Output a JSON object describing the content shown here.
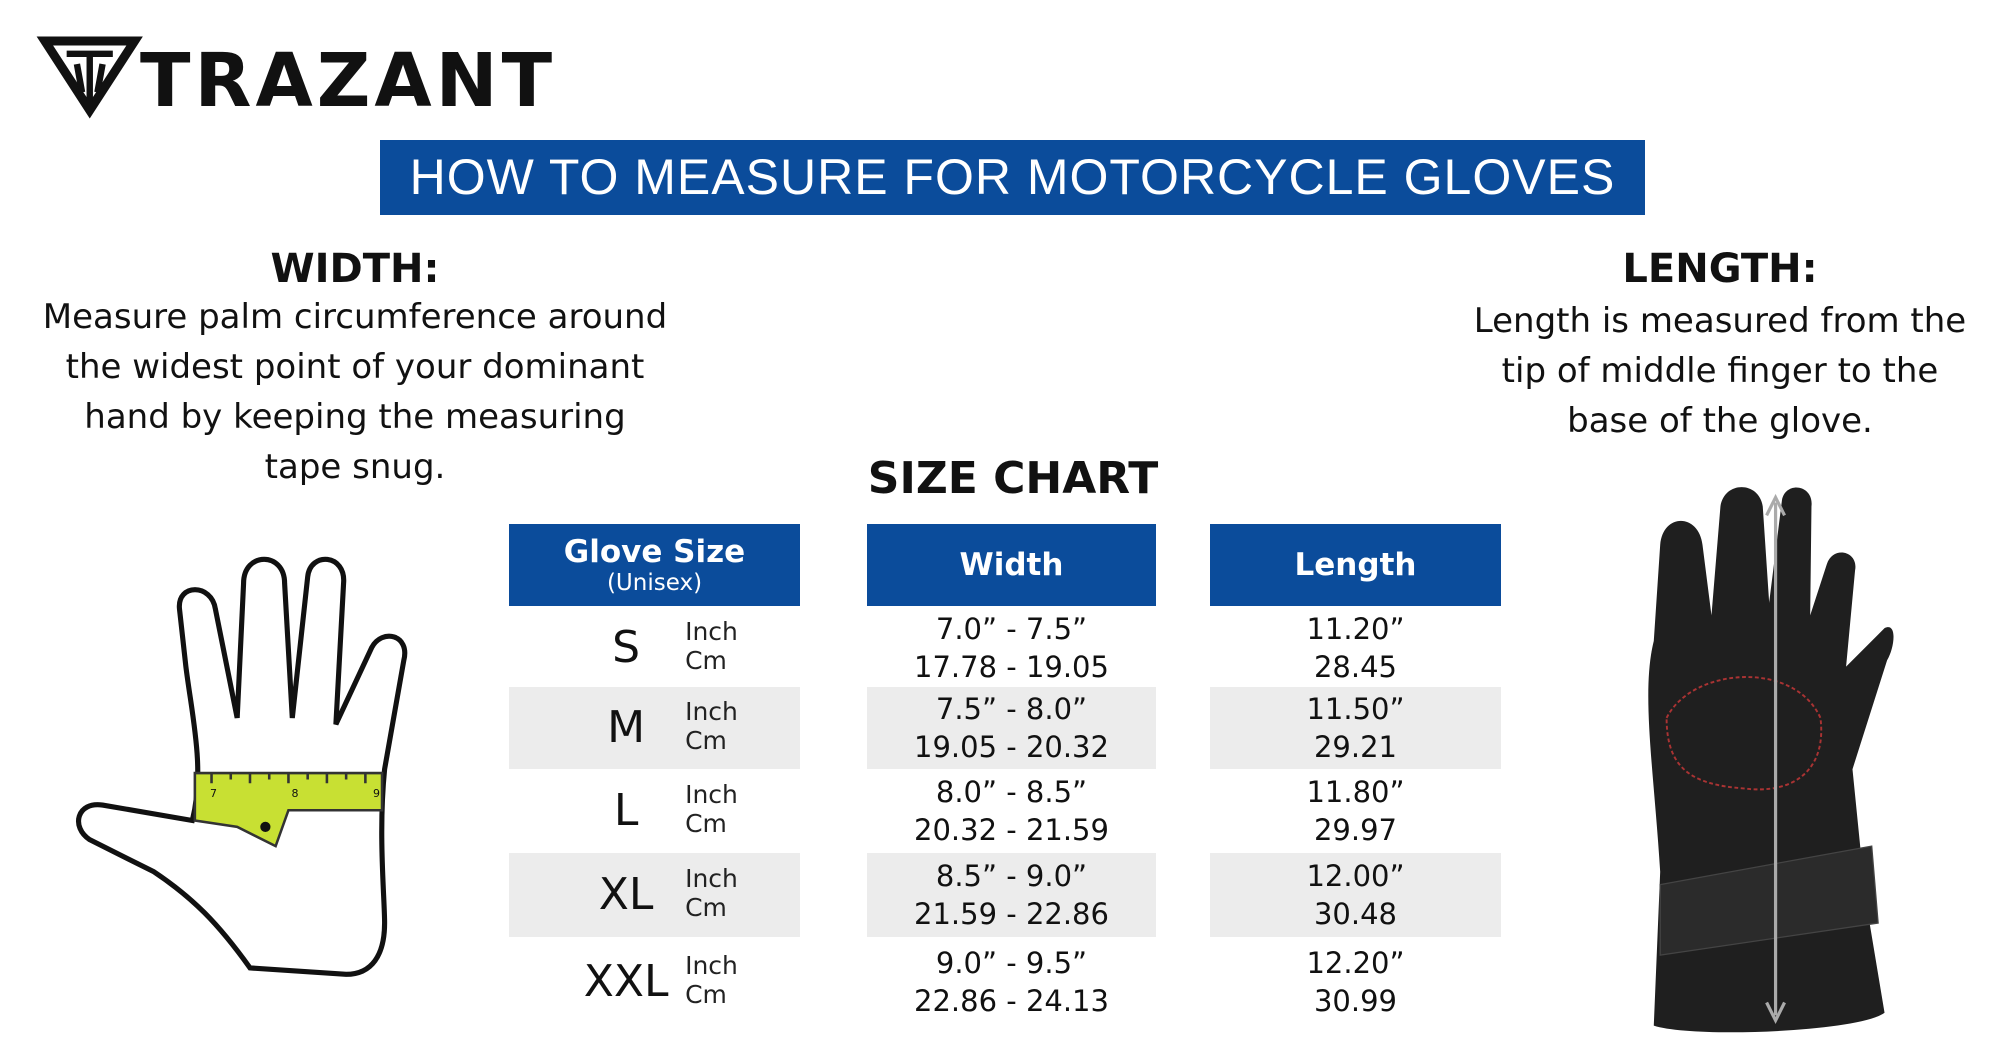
{
  "brand": "TRAZANT",
  "banner": "HOW TO MEASURE FOR MOTORCYCLE GLOVES",
  "width_section": {
    "heading": "WIDTH:",
    "lines": [
      "Measure palm circumference around",
      "the widest point of your dominant",
      "hand by keeping the measuring",
      "tape snug."
    ]
  },
  "length_section": {
    "heading": "LENGTH:",
    "lines": [
      "Length is measured from the",
      "tip of middle finger to the",
      "base of the glove."
    ]
  },
  "tape_marks": [
    "7",
    "8",
    "9"
  ],
  "size_chart": {
    "title": "SIZE CHART",
    "headers": {
      "size": "Glove Size",
      "size_note": "(Unisex)",
      "width": "Width",
      "length": "Length"
    },
    "rows": [
      {
        "size": "S",
        "units": [
          "Inch",
          "Cm"
        ],
        "width": [
          "7.0” - 7.5”",
          "17.78 - 19.05"
        ],
        "length": [
          "11.20”",
          "28.45"
        ]
      },
      {
        "size": "M",
        "units": [
          "Inch",
          "Cm"
        ],
        "width": [
          "7.5” - 8.0”",
          "19.05 - 20.32"
        ],
        "length": [
          "11.50”",
          "29.21"
        ]
      },
      {
        "size": "L",
        "units": [
          "Inch",
          "Cm"
        ],
        "width": [
          "8.0” - 8.5”",
          "20.32 - 21.59"
        ],
        "length": [
          "11.80”",
          "29.97"
        ]
      },
      {
        "size": "XL",
        "units": [
          "Inch",
          "Cm"
        ],
        "width": [
          "8.5” - 9.0”",
          "21.59 - 22.86"
        ],
        "length": [
          "12.00”",
          "30.48"
        ]
      },
      {
        "size": "XXL",
        "units": [
          "Inch",
          "Cm"
        ],
        "width": [
          "9.0” - 9.5”",
          "22.86 - 24.13"
        ],
        "length": [
          "12.20”",
          "30.99"
        ]
      }
    ]
  }
}
